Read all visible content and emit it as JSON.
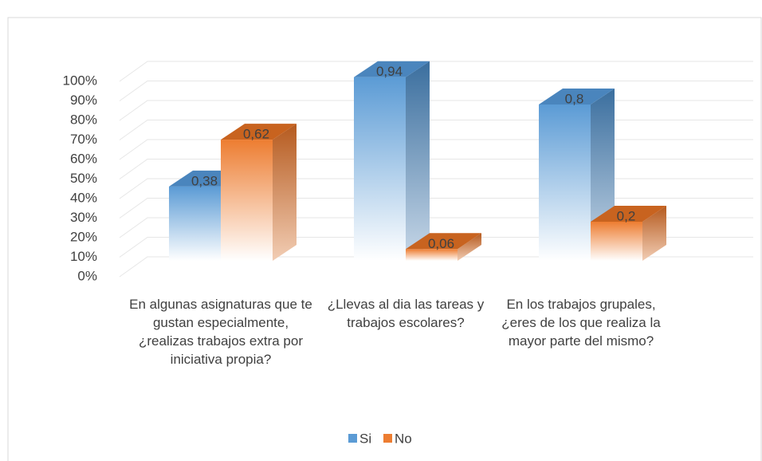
{
  "chart_data": {
    "type": "bar3d",
    "categories": [
      "En algunas asignaturas que te gustan especialmente, ¿realizas trabajos extra por iniciativa propia?",
      "¿Llevas al dia las tareas y trabajos escolares?",
      "En los trabajos grupales, ¿eres de los que realiza la mayor parte del mismo?"
    ],
    "series": [
      {
        "name": "Si",
        "color": "#5b9bd5",
        "values": [
          0.38,
          0.94,
          0.8
        ],
        "value_labels": [
          "0,38",
          "0,94",
          "0,8"
        ]
      },
      {
        "name": "No",
        "color": "#ed7d31",
        "values": [
          0.62,
          0.06,
          0.2
        ],
        "value_labels": [
          "0,62",
          "0,06",
          "0,2"
        ]
      }
    ],
    "ylim": [
      0,
      1
    ],
    "yticks": [
      {
        "value": 0,
        "label": "0%"
      },
      {
        "value": 0.1,
        "label": "10%"
      },
      {
        "value": 0.2,
        "label": "20%"
      },
      {
        "value": 0.3,
        "label": "30%"
      },
      {
        "value": 0.4,
        "label": "40%"
      },
      {
        "value": 0.5,
        "label": "50%"
      },
      {
        "value": 0.6,
        "label": "60%"
      },
      {
        "value": 0.7,
        "label": "70%"
      },
      {
        "value": 0.8,
        "label": "80%"
      },
      {
        "value": 0.9,
        "label": "90%"
      },
      {
        "value": 1,
        "label": "100%"
      }
    ],
    "grid": true,
    "legend": "bottom"
  }
}
